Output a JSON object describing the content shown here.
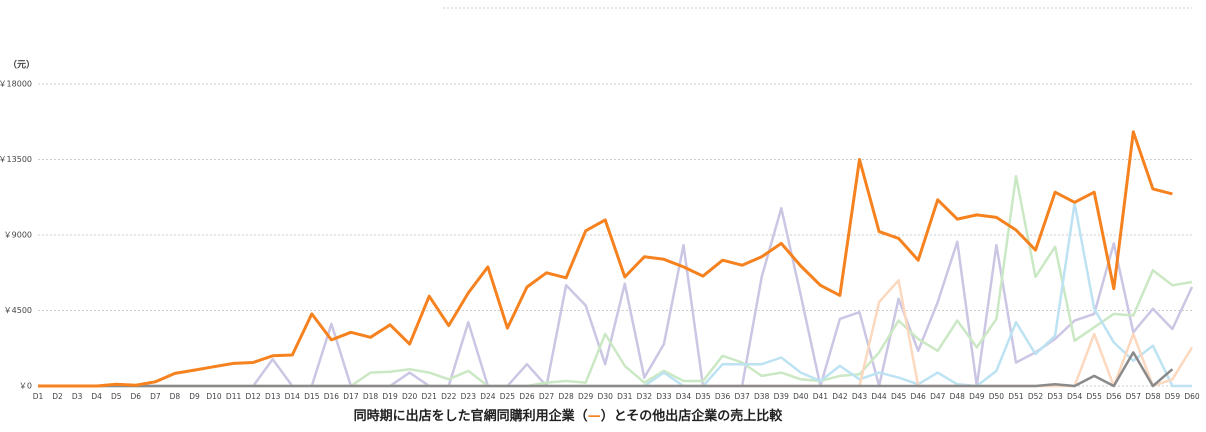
{
  "chart_data": {
    "type": "line",
    "title": [
      "同時期に出店をした官網同購利用企業（",
      "—",
      "）とその他出店企業の売上比較"
    ],
    "title_mark_color": "#f5821f",
    "y_label": "（元）",
    "categories": [
      "D1",
      "D2",
      "D3",
      "D4",
      "D5",
      "D6",
      "D7",
      "D8",
      "D9",
      "D10",
      "D11",
      "D12",
      "D13",
      "D14",
      "D15",
      "D16",
      "D17",
      "D18",
      "D19",
      "D20",
      "D21",
      "D22",
      "D23",
      "D24",
      "D25",
      "D26",
      "D27",
      "D28",
      "D29",
      "D30",
      "D31",
      "D32",
      "D33",
      "D34",
      "D35",
      "D36",
      "D37",
      "D38",
      "D39",
      "D40",
      "D41",
      "D42",
      "D43",
      "D44",
      "D45",
      "D46",
      "D47",
      "D48",
      "D49",
      "D50",
      "D51",
      "D52",
      "D53",
      "D54",
      "D55",
      "D56",
      "D57",
      "D58",
      "D59",
      "D60"
    ],
    "ylim": [
      0,
      18000
    ],
    "yticks": [
      {
        "value": 0,
        "label": "￥0"
      },
      {
        "value": 4500,
        "label": "￥4500"
      },
      {
        "value": 9000,
        "label": "￥9000"
      },
      {
        "value": 13500,
        "label": "￥13500"
      },
      {
        "value": 18000,
        "label": "￥18000"
      }
    ],
    "grid": true,
    "series": [
      {
        "color": "#cbc6e3",
        "values": [
          0,
          0,
          0,
          0,
          0,
          0,
          0,
          0,
          0,
          0,
          0,
          0,
          1600,
          0,
          0,
          3700,
          0,
          0,
          0,
          800,
          0,
          0,
          3800,
          0,
          0,
          1300,
          0,
          6000,
          4800,
          1300,
          6100,
          500,
          2500,
          8400,
          0,
          0,
          0,
          6500,
          10600,
          5400,
          0,
          4000,
          4400,
          0,
          5200,
          2100,
          5000,
          8600,
          0,
          8400,
          1400,
          2000,
          2800,
          3900,
          4300,
          8500,
          3200,
          4600,
          3400,
          5900
        ]
      },
      {
        "color": "#cbe8c4",
        "values": [
          0,
          0,
          0,
          0,
          0,
          0,
          0,
          0,
          0,
          0,
          0,
          0,
          0,
          0,
          0,
          0,
          0,
          800,
          850,
          1000,
          800,
          400,
          900,
          0,
          0,
          0,
          200,
          300,
          200,
          3100,
          1200,
          200,
          900,
          300,
          300,
          1800,
          1400,
          600,
          800,
          400,
          300,
          600,
          700,
          2000,
          3900,
          2800,
          2100,
          3900,
          2300,
          4000,
          12500,
          6500,
          8300,
          2700,
          3500,
          4300,
          4200,
          6900,
          6000,
          6200
        ]
      },
      {
        "color": "#bde3f3",
        "values": [
          0,
          0,
          0,
          0,
          0,
          0,
          0,
          0,
          0,
          0,
          0,
          0,
          0,
          0,
          0,
          0,
          0,
          0,
          0,
          0,
          0,
          0,
          0,
          0,
          0,
          0,
          0,
          0,
          0,
          0,
          0,
          0,
          800,
          0,
          0,
          1300,
          1300,
          1300,
          1700,
          800,
          300,
          1200,
          400,
          800,
          500,
          100,
          800,
          100,
          0,
          900,
          3800,
          1900,
          3000,
          10900,
          4600,
          2600,
          1500,
          2400,
          0,
          0
        ]
      },
      {
        "color": "#fcd8bf",
        "values": [
          0,
          0,
          0,
          0,
          0,
          0,
          0,
          0,
          0,
          0,
          0,
          0,
          0,
          0,
          0,
          0,
          0,
          0,
          0,
          0,
          0,
          0,
          0,
          0,
          0,
          0,
          0,
          0,
          0,
          0,
          0,
          0,
          0,
          0,
          0,
          0,
          0,
          0,
          0,
          0,
          0,
          0,
          0,
          5000,
          6300,
          0,
          0,
          0,
          0,
          0,
          0,
          0,
          0,
          0,
          3100,
          0,
          3100,
          0,
          400,
          2300
        ]
      },
      {
        "color": "#8a8a8a",
        "values": [
          0,
          0,
          0,
          0,
          0,
          0,
          0,
          0,
          0,
          0,
          0,
          0,
          0,
          0,
          0,
          0,
          0,
          0,
          0,
          0,
          0,
          0,
          0,
          0,
          0,
          0,
          0,
          0,
          0,
          0,
          0,
          0,
          0,
          0,
          0,
          0,
          0,
          0,
          0,
          0,
          0,
          0,
          0,
          0,
          0,
          0,
          0,
          0,
          0,
          0,
          0,
          0,
          100,
          0,
          600,
          0,
          2000,
          0,
          1000,
          null
        ]
      },
      {
        "color": "#f5821f",
        "values": [
          0,
          0,
          0,
          0,
          100,
          50,
          250,
          750,
          950,
          1150,
          1350,
          1400,
          1800,
          1850,
          4300,
          2750,
          3200,
          2900,
          3650,
          2500,
          5350,
          3600,
          5550,
          7100,
          3450,
          5900,
          6750,
          6450,
          9250,
          9900,
          6500,
          7700,
          7550,
          7100,
          6550,
          7500,
          7200,
          7700,
          8500,
          7150,
          6000,
          5400,
          13500,
          9200,
          8800,
          7500,
          11100,
          9950,
          10200,
          10050,
          9300,
          8100,
          11550,
          10950,
          11550,
          5800,
          15150,
          11750,
          11450,
          null
        ]
      }
    ]
  }
}
